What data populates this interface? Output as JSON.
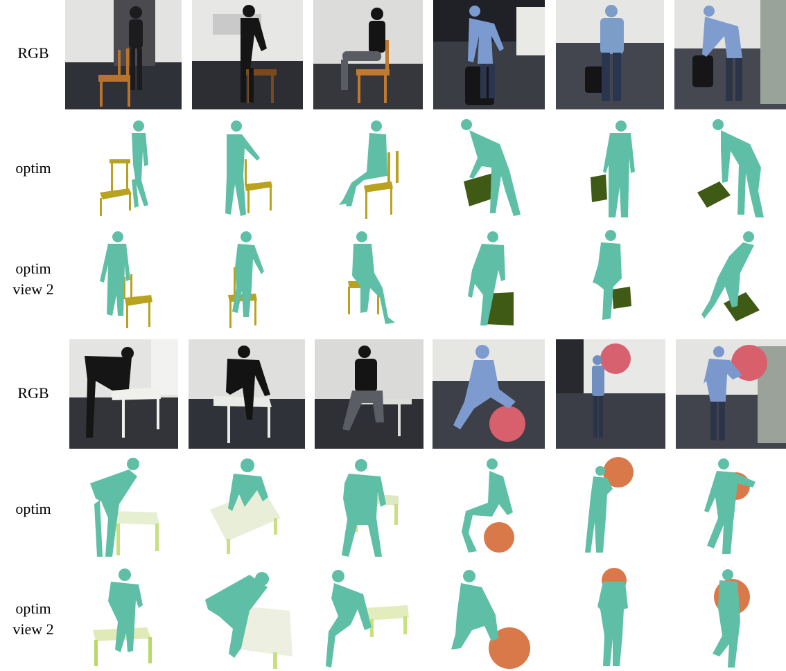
{
  "figure": {
    "row_labels": [
      "RGB",
      "optim",
      "optim\nview 2",
      "RGB",
      "optim",
      "optim\nview 2"
    ],
    "columns_per_row": 6,
    "object_types": [
      "chair",
      "chair",
      "chair",
      "suitcase",
      "suitcase",
      "suitcase",
      "table",
      "table",
      "table",
      "yoga-ball",
      "yoga-ball",
      "yoga-ball"
    ],
    "colors": {
      "human_mesh": "#5fbfa6",
      "chair_mesh": "#b8a21f",
      "suitcase_mesh": "#3f5a14",
      "table_mesh": "#e6efd0",
      "ball_mesh": "#d9794a",
      "photo_wall": "#d8d8d8",
      "photo_floor": "#3a3d47"
    }
  }
}
